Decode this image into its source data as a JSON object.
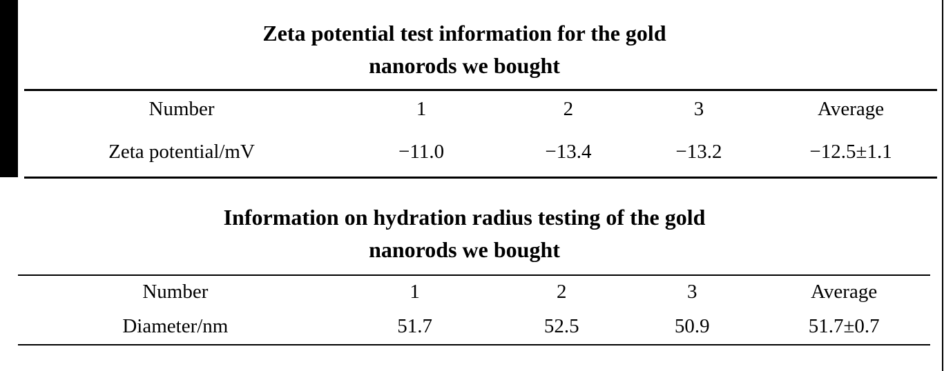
{
  "page": {
    "background_color": "#ffffff",
    "text_color": "#000000",
    "scan_bar_color": "#000000"
  },
  "tables": [
    {
      "title_line1": "Zeta potential test information for the gold",
      "title_line2": "nanorods we bought",
      "header": [
        "Number",
        "1",
        "2",
        "3",
        "Average"
      ],
      "rows": [
        [
          "Zeta potential/mV",
          "−11.0",
          "−13.4",
          "−13.2",
          "−12.5±1.1"
        ]
      ]
    },
    {
      "title_line1": "Information on hydration radius testing of the gold",
      "title_line2": "nanorods we bought",
      "header": [
        "Number",
        "1",
        "2",
        "3",
        "Average"
      ],
      "rows": [
        [
          "Diameter/nm",
          "51.7",
          "52.5",
          "50.9",
          "51.7±0.7"
        ]
      ]
    }
  ]
}
